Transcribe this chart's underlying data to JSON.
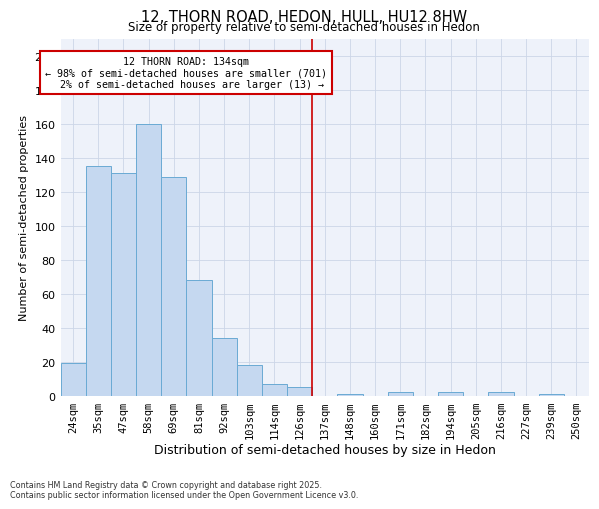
{
  "title1": "12, THORN ROAD, HEDON, HULL, HU12 8HW",
  "title2": "Size of property relative to semi-detached houses in Hedon",
  "xlabel": "Distribution of semi-detached houses by size in Hedon",
  "ylabel": "Number of semi-detached properties",
  "categories": [
    "24sqm",
    "35sqm",
    "47sqm",
    "58sqm",
    "69sqm",
    "81sqm",
    "92sqm",
    "103sqm",
    "114sqm",
    "126sqm",
    "137sqm",
    "148sqm",
    "160sqm",
    "171sqm",
    "182sqm",
    "194sqm",
    "205sqm",
    "216sqm",
    "227sqm",
    "239sqm",
    "250sqm"
  ],
  "values": [
    19,
    135,
    131,
    160,
    129,
    68,
    34,
    18,
    7,
    5,
    0,
    1,
    0,
    2,
    0,
    2,
    0,
    2,
    0,
    1,
    0
  ],
  "bar_color": "#c5d8f0",
  "bar_edge_color": "#6aaad4",
  "vline_color": "#cc0000",
  "vline_x": 9.5,
  "property_label": "12 THORN ROAD: 134sqm",
  "pct_smaller": 98,
  "n_smaller": 701,
  "pct_larger": 2,
  "n_larger": 13,
  "annotation_box_color": "#cc0000",
  "ylim": [
    0,
    210
  ],
  "yticks": [
    0,
    20,
    40,
    60,
    80,
    100,
    120,
    140,
    160,
    180,
    200
  ],
  "grid_color": "#ccd6e8",
  "bg_color": "#eef2fa",
  "footnote1": "Contains HM Land Registry data © Crown copyright and database right 2025.",
  "footnote2": "Contains public sector information licensed under the Open Government Licence v3.0."
}
